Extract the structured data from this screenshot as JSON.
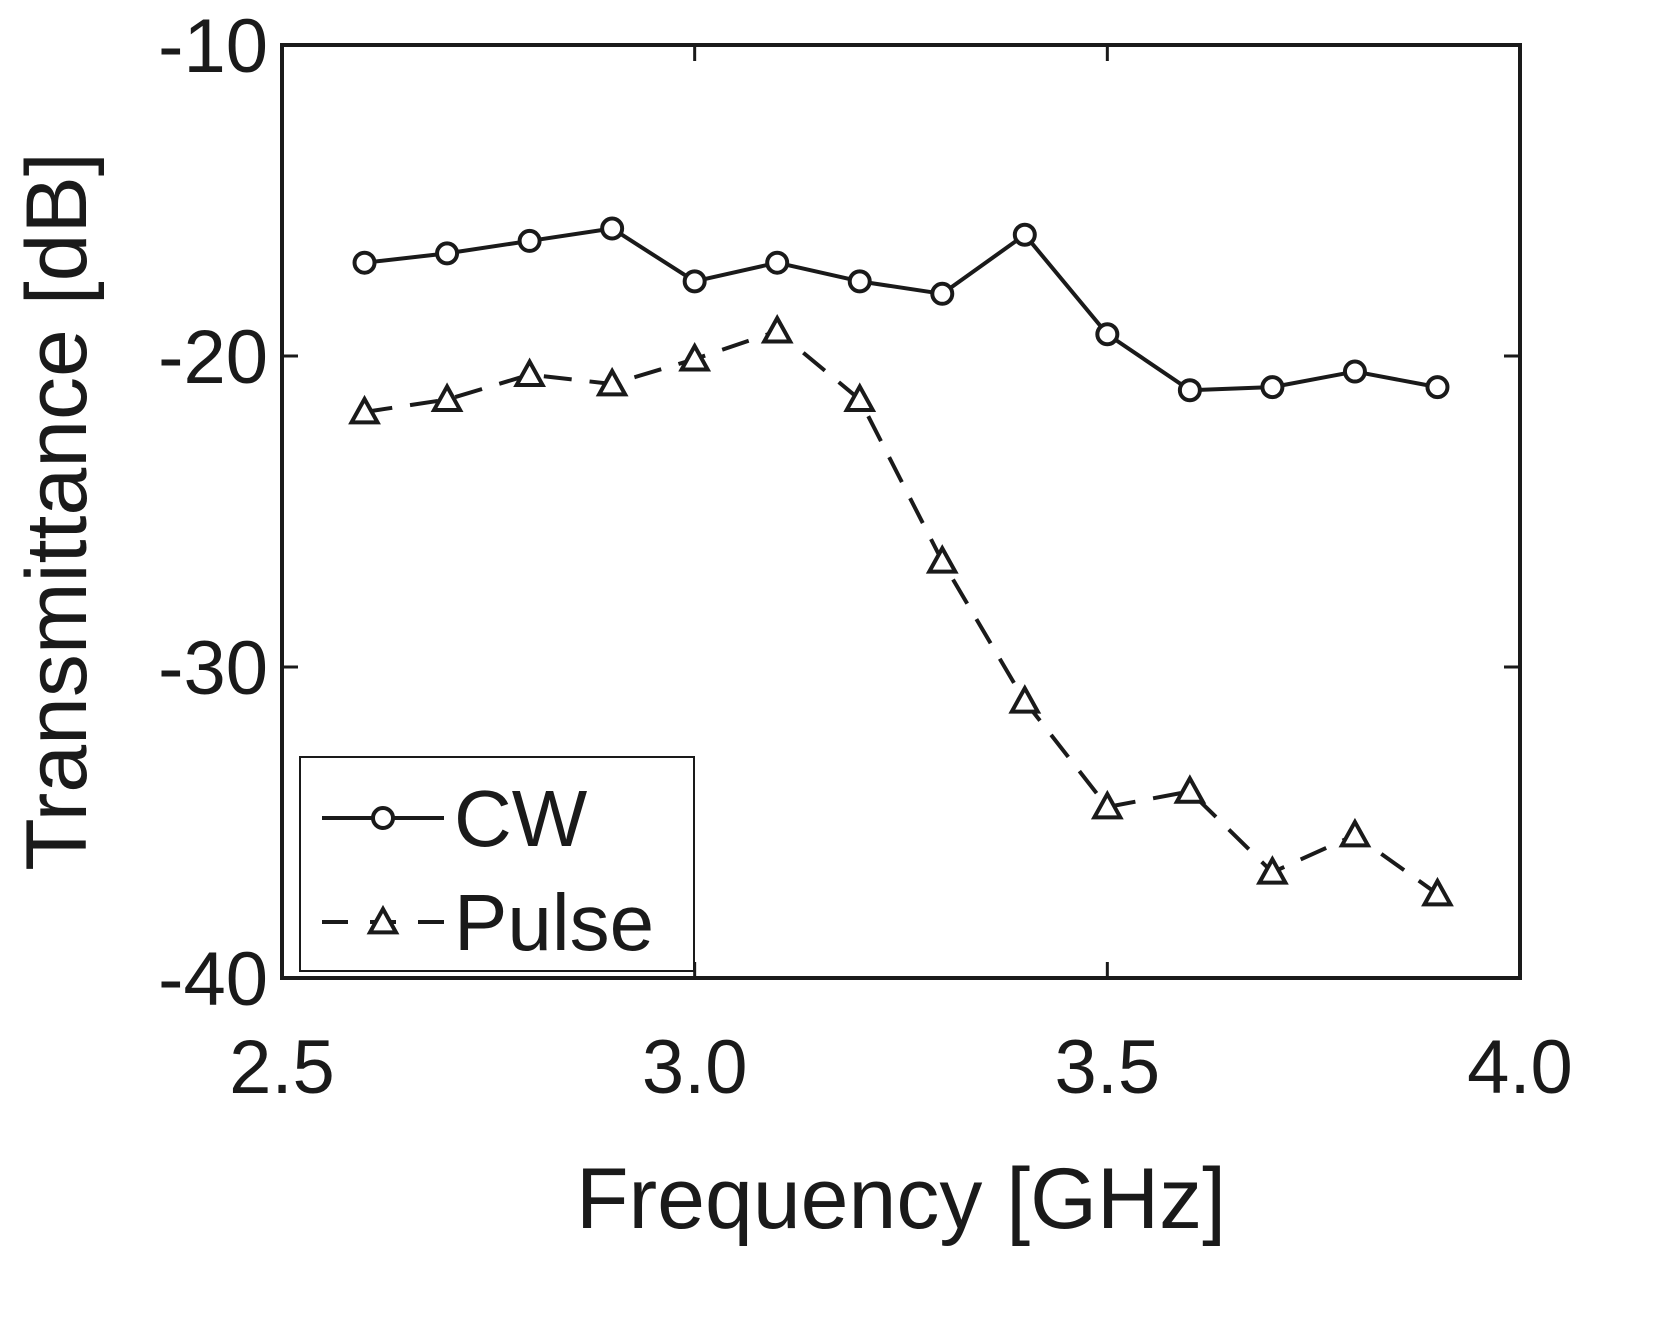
{
  "chart_data": {
    "type": "line",
    "title": "",
    "xlabel": "Frequency [GHz]",
    "ylabel": "Transmittance [dB]",
    "xlim": [
      2.5,
      4.0
    ],
    "ylim": [
      -40,
      -10
    ],
    "xticks": [
      2.5,
      3.0,
      3.5,
      4.0
    ],
    "xtick_labels": [
      "2.5",
      "3.0",
      "3.5",
      "4.0"
    ],
    "yticks": [
      -40,
      -30,
      -20,
      -10
    ],
    "ytick_labels": [
      "-40",
      "-30",
      "-20",
      "-10"
    ],
    "grid": false,
    "legend_position": "bottom-left",
    "series": [
      {
        "name": "CW",
        "line_style": "solid",
        "marker": "circle",
        "x": [
          2.6,
          2.7,
          2.8,
          2.9,
          3.0,
          3.1,
          3.2,
          3.3,
          3.4,
          3.5,
          3.6,
          3.7,
          3.8,
          3.9
        ],
        "values": [
          -17.0,
          -16.7,
          -16.3,
          -15.9,
          -17.6,
          -17.0,
          -17.6,
          -18.0,
          -16.1,
          -19.3,
          -21.1,
          -21.0,
          -20.5,
          -21.0
        ]
      },
      {
        "name": "Pulse",
        "line_style": "dashed",
        "marker": "triangle",
        "x": [
          2.6,
          2.7,
          2.8,
          2.9,
          3.0,
          3.1,
          3.2,
          3.3,
          3.4,
          3.5,
          3.6,
          3.7,
          3.8,
          3.9
        ],
        "values": [
          -21.8,
          -21.4,
          -20.6,
          -20.9,
          -20.1,
          -19.2,
          -21.4,
          -26.6,
          -31.1,
          -34.5,
          -34.0,
          -36.6,
          -35.4,
          -37.3
        ]
      }
    ]
  }
}
